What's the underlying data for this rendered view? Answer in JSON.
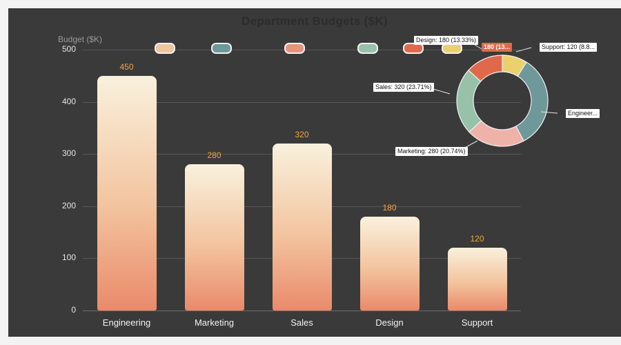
{
  "title": "Department Budgets ($K)",
  "y_axis_label": "Budget ($K)",
  "chart_data": [
    {
      "type": "bar",
      "title": "Department Budgets ($K)",
      "ylabel": "Budget ($K)",
      "categories": [
        "Engineering",
        "Marketing",
        "Sales",
        "Design",
        "Support"
      ],
      "values": [
        450,
        280,
        320,
        180,
        120
      ],
      "value_labels": [
        "450",
        "280",
        "320",
        "180",
        "120"
      ],
      "ylim": [
        0,
        500
      ],
      "yticks": [
        0,
        100,
        200,
        300,
        400,
        500
      ],
      "grid": true,
      "legend_position": "top"
    },
    {
      "type": "pie",
      "donut": true,
      "title": "",
      "slices_clockwise_from_top": [
        {
          "label": "Support",
          "value": 120,
          "pct": "8.89%",
          "color": "#ecd06e"
        },
        {
          "label": "Engineering",
          "value": 450,
          "pct": "33.33%",
          "color": "#6e9899"
        },
        {
          "label": "Marketing",
          "value": 280,
          "pct": "20.74%",
          "color": "#efb2a9"
        },
        {
          "label": "Sales",
          "value": 320,
          "pct": "23.71%",
          "color": "#97c1a9"
        },
        {
          "label": "Design",
          "value": 180,
          "pct": "13.33%",
          "color": "#e0694b"
        }
      ],
      "callouts": [
        "Design: 180 (13.33%)",
        "180 (13...",
        "Support: 120 (8.8...",
        "Sales: 320 (23.71%)",
        "Marketing: 280 (20.74%)",
        "Engineer..."
      ]
    }
  ],
  "legend": {
    "swatch_colors": [
      "#f0c49e",
      "#6e9899",
      "#e8937d",
      "#97c1a9",
      "#e0694b",
      "#ecd06e"
    ]
  },
  "colors": {
    "page_bg": "#f3f3f3",
    "panel_bg": "#3a3a3a",
    "bar_gradient_top": "#f9f1dd",
    "bar_gradient_bottom": "#ea8a6b",
    "value_label": "#f2a63e",
    "grid_line": "#585858",
    "tick_text": "#e6e6e6",
    "title_text": "#2c2c2c",
    "axis_label_text": "#9a9a9a",
    "callout_bg": "#ffffff"
  }
}
